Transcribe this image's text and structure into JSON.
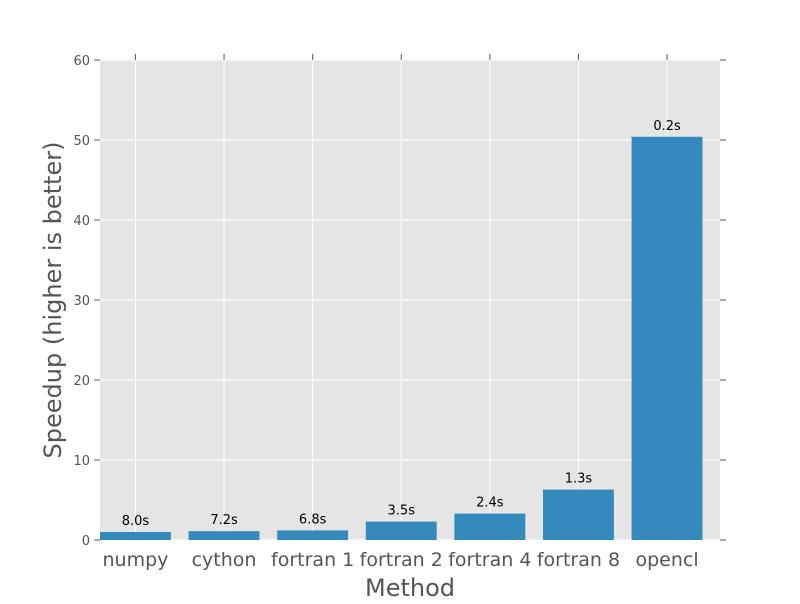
{
  "chart_data": {
    "type": "bar",
    "title": "",
    "xlabel": "Method",
    "ylabel": "Speedup (higher is better)",
    "categories": [
      "numpy",
      "cython",
      "fortran 1",
      "fortran 2",
      "fortran 4",
      "fortran 8",
      "opencl"
    ],
    "values": [
      1.0,
      1.1,
      1.2,
      2.3,
      3.3,
      6.3,
      50.4
    ],
    "data_labels": [
      "8.0s",
      "7.2s",
      "6.8s",
      "3.5s",
      "2.4s",
      "1.3s",
      "0.2s"
    ],
    "ylim": [
      0,
      60
    ],
    "yticks": [
      0,
      10,
      20,
      30,
      40,
      50,
      60
    ],
    "grid": true,
    "legend": "none",
    "colors": {
      "bar": "#348ABD",
      "plot_background": "#E5E5E5",
      "grid": "#FFFFFF",
      "tick_text": "#555555",
      "label_text": "#555555",
      "data_label_text": "#000000"
    }
  }
}
